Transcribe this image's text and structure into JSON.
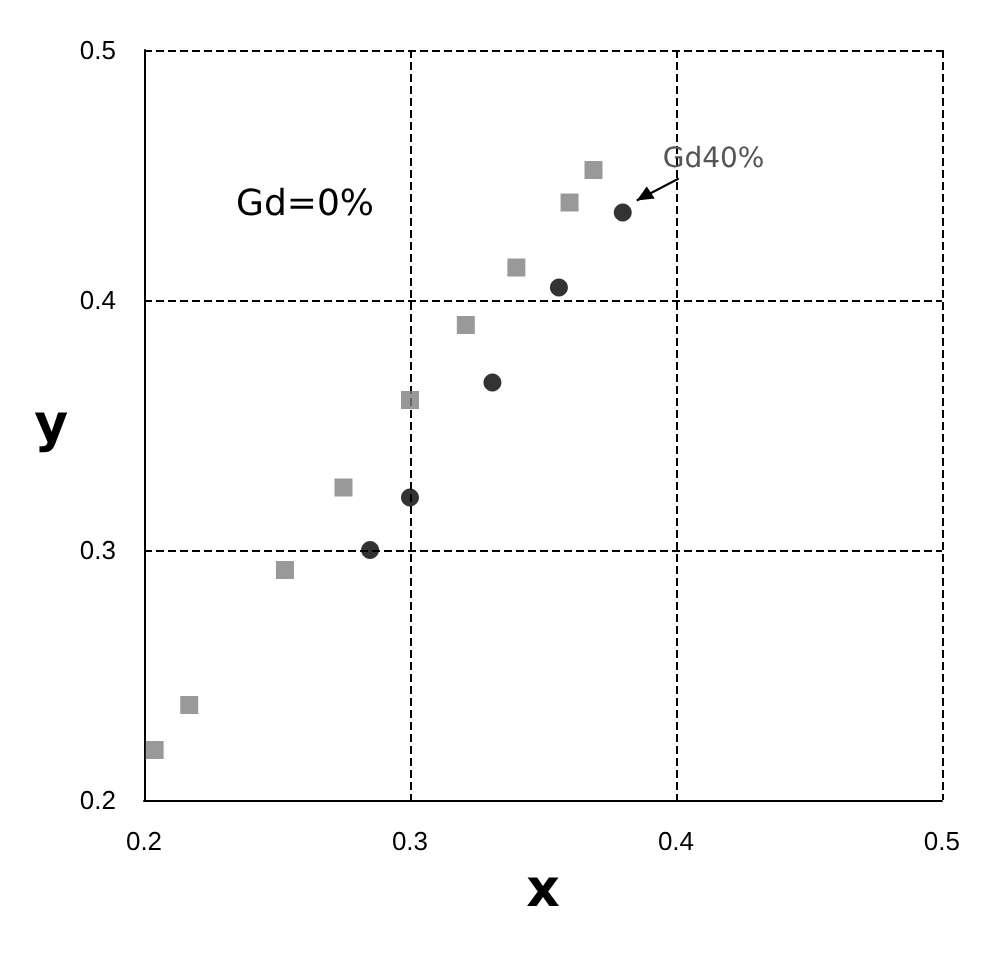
{
  "chart_data": {
    "type": "scatter",
    "xlabel": "x",
    "ylabel": "y",
    "xlim": [
      0.2,
      0.5
    ],
    "ylim": [
      0.2,
      0.5
    ],
    "xticks": [
      0.2,
      0.3,
      0.4,
      0.5
    ],
    "yticks": [
      0.2,
      0.3,
      0.4,
      0.5
    ],
    "grid": true,
    "series": [
      {
        "color": "#808080",
        "marker": "square",
        "x": [
          0.204,
          0.217,
          0.253,
          0.275,
          0.3,
          0.321,
          0.34,
          0.36,
          0.369
        ],
        "values": [
          0.22,
          0.238,
          0.292,
          0.325,
          0.36,
          0.39,
          0.413,
          0.439,
          0.452
        ]
      },
      {
        "color": "#000000",
        "marker": "circle",
        "x": [
          0.285,
          0.3,
          0.331,
          0.356,
          0.38
        ],
        "values": [
          0.3,
          0.321,
          0.367,
          0.405,
          0.435
        ]
      }
    ],
    "annotations": [
      "Gd=0%",
      {
        "text": "Gd40%",
        "x": 0.38,
        "y": 0.435
      }
    ]
  }
}
